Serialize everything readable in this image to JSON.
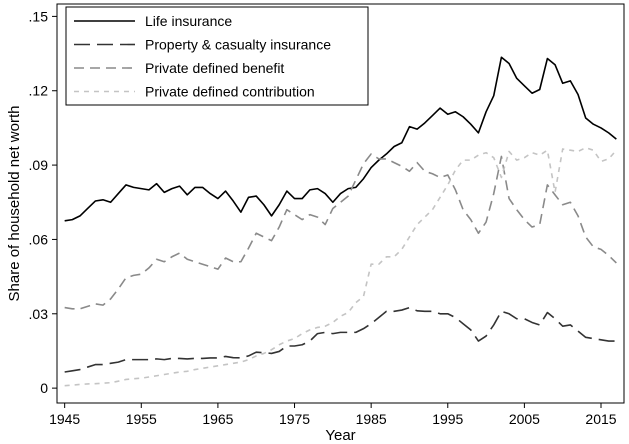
{
  "chart_data": {
    "type": "line",
    "xlabel": "Year",
    "ylabel": "Share of household net worth",
    "xlim": [
      1944,
      2018
    ],
    "ylim": [
      -0.006,
      0.155
    ],
    "x_ticks": [
      1945,
      1955,
      1965,
      1975,
      1985,
      1995,
      2005,
      2015
    ],
    "y_ticks": [
      {
        "value": 0,
        "label": "0"
      },
      {
        "value": 0.03,
        "label": ".03"
      },
      {
        "value": 0.06,
        "label": ".06"
      },
      {
        "value": 0.09,
        "label": ".09"
      },
      {
        "value": 0.12,
        "label": ".12"
      },
      {
        "value": 0.15,
        "label": ".15"
      }
    ],
    "grid": false,
    "legend_position": "top-left",
    "series": [
      {
        "name": "Life insurance",
        "color": "#000000",
        "dash": "solid",
        "x": [
          1945,
          1946,
          1947,
          1948,
          1949,
          1950,
          1951,
          1952,
          1953,
          1954,
          1955,
          1956,
          1957,
          1958,
          1959,
          1960,
          1961,
          1962,
          1963,
          1964,
          1965,
          1966,
          1967,
          1968,
          1969,
          1970,
          1971,
          1972,
          1973,
          1974,
          1975,
          1976,
          1977,
          1978,
          1979,
          1980,
          1981,
          1982,
          1983,
          1984,
          1985,
          1986,
          1987,
          1988,
          1989,
          1990,
          1991,
          1992,
          1993,
          1994,
          1995,
          1996,
          1997,
          1998,
          1999,
          2000,
          2001,
          2002,
          2003,
          2004,
          2005,
          2006,
          2007,
          2008,
          2009,
          2010,
          2011,
          2012,
          2013,
          2014,
          2015,
          2016,
          2017
        ],
        "values": [
          0.0675,
          0.068,
          0.0695,
          0.0725,
          0.0755,
          0.076,
          0.075,
          0.0785,
          0.082,
          0.081,
          0.0805,
          0.08,
          0.0825,
          0.079,
          0.0805,
          0.0815,
          0.078,
          0.081,
          0.081,
          0.0785,
          0.0765,
          0.0795,
          0.0755,
          0.071,
          0.077,
          0.0775,
          0.074,
          0.0695,
          0.074,
          0.0795,
          0.0765,
          0.0765,
          0.08,
          0.0805,
          0.0785,
          0.075,
          0.0785,
          0.0805,
          0.081,
          0.0845,
          0.089,
          0.092,
          0.0945,
          0.0975,
          0.099,
          0.1055,
          0.1045,
          0.107,
          0.11,
          0.113,
          0.1105,
          0.1115,
          0.1095,
          0.1065,
          0.103,
          0.1115,
          0.118,
          0.1335,
          0.131,
          0.125,
          0.122,
          0.119,
          0.1205,
          0.133,
          0.1305,
          0.123,
          0.124,
          0.1185,
          0.109,
          0.1065,
          0.105,
          0.103,
          0.1005
        ]
      },
      {
        "name": "Property & casualty insurance",
        "color": "#333333",
        "dash": "long",
        "x": [
          1945,
          1946,
          1947,
          1948,
          1949,
          1950,
          1951,
          1952,
          1953,
          1954,
          1955,
          1956,
          1957,
          1958,
          1959,
          1960,
          1961,
          1962,
          1963,
          1964,
          1965,
          1966,
          1967,
          1968,
          1969,
          1970,
          1971,
          1972,
          1973,
          1974,
          1975,
          1976,
          1977,
          1978,
          1979,
          1980,
          1981,
          1982,
          1983,
          1984,
          1985,
          1986,
          1987,
          1988,
          1989,
          1990,
          1991,
          1992,
          1993,
          1994,
          1995,
          1996,
          1997,
          1998,
          1999,
          2000,
          2001,
          2002,
          2003,
          2004,
          2005,
          2006,
          2007,
          2008,
          2009,
          2010,
          2011,
          2012,
          2013,
          2014,
          2015,
          2016,
          2017
        ],
        "values": [
          0.0065,
          0.007,
          0.0075,
          0.0085,
          0.0095,
          0.0095,
          0.01,
          0.0105,
          0.0115,
          0.0115,
          0.0115,
          0.0115,
          0.0118,
          0.0115,
          0.012,
          0.012,
          0.0118,
          0.012,
          0.012,
          0.0122,
          0.0122,
          0.0128,
          0.0123,
          0.0122,
          0.013,
          0.0145,
          0.0143,
          0.014,
          0.0148,
          0.017,
          0.017,
          0.0175,
          0.019,
          0.022,
          0.0225,
          0.022,
          0.0225,
          0.0225,
          0.0225,
          0.024,
          0.026,
          0.0285,
          0.031,
          0.031,
          0.0315,
          0.0325,
          0.0312,
          0.031,
          0.031,
          0.03,
          0.03,
          0.0285,
          0.026,
          0.0235,
          0.019,
          0.021,
          0.0255,
          0.031,
          0.03,
          0.028,
          0.028,
          0.0265,
          0.0255,
          0.0305,
          0.028,
          0.025,
          0.0255,
          0.023,
          0.0205,
          0.02,
          0.0195,
          0.019,
          0.019
        ]
      },
      {
        "name": "Private defined benefit",
        "color": "#8a8a8a",
        "dash": "medium",
        "x": [
          1945,
          1946,
          1947,
          1948,
          1949,
          1950,
          1951,
          1952,
          1953,
          1954,
          1955,
          1956,
          1957,
          1958,
          1959,
          1960,
          1961,
          1962,
          1963,
          1964,
          1965,
          1966,
          1967,
          1968,
          1969,
          1970,
          1971,
          1972,
          1973,
          1974,
          1975,
          1976,
          1977,
          1978,
          1979,
          1980,
          1981,
          1982,
          1983,
          1984,
          1985,
          1986,
          1987,
          1988,
          1989,
          1990,
          1991,
          1992,
          1993,
          1994,
          1995,
          1996,
          1997,
          1998,
          1999,
          2000,
          2001,
          2002,
          2003,
          2004,
          2005,
          2006,
          2007,
          2008,
          2009,
          2010,
          2011,
          2012,
          2013,
          2014,
          2015,
          2016,
          2017
        ],
        "values": [
          0.0325,
          0.032,
          0.032,
          0.033,
          0.034,
          0.0335,
          0.036,
          0.04,
          0.0445,
          0.0455,
          0.046,
          0.0485,
          0.052,
          0.051,
          0.053,
          0.0545,
          0.052,
          0.051,
          0.05,
          0.049,
          0.048,
          0.0525,
          0.051,
          0.051,
          0.0565,
          0.0625,
          0.061,
          0.0595,
          0.065,
          0.072,
          0.07,
          0.068,
          0.07,
          0.069,
          0.066,
          0.0725,
          0.075,
          0.0775,
          0.084,
          0.0905,
          0.0945,
          0.0925,
          0.0925,
          0.091,
          0.0895,
          0.0875,
          0.091,
          0.0875,
          0.0865,
          0.085,
          0.086,
          0.08,
          0.072,
          0.068,
          0.0625,
          0.067,
          0.0785,
          0.0935,
          0.0765,
          0.072,
          0.068,
          0.065,
          0.066,
          0.082,
          0.078,
          0.074,
          0.075,
          0.0695,
          0.061,
          0.057,
          0.056,
          0.0535,
          0.0505
        ]
      },
      {
        "name": "Private defined contribution",
        "color": "#c4c4c4",
        "dash": "short",
        "x": [
          1945,
          1946,
          1947,
          1948,
          1949,
          1950,
          1951,
          1952,
          1953,
          1954,
          1955,
          1956,
          1957,
          1958,
          1959,
          1960,
          1961,
          1962,
          1963,
          1964,
          1965,
          1966,
          1967,
          1968,
          1969,
          1970,
          1971,
          1972,
          1973,
          1974,
          1975,
          1976,
          1977,
          1978,
          1979,
          1980,
          1981,
          1982,
          1983,
          1984,
          1985,
          1986,
          1987,
          1988,
          1989,
          1990,
          1991,
          1992,
          1993,
          1994,
          1995,
          1996,
          1997,
          1998,
          1999,
          2000,
          2001,
          2002,
          2003,
          2004,
          2005,
          2006,
          2007,
          2008,
          2009,
          2010,
          2011,
          2012,
          2013,
          2014,
          2015,
          2016,
          2017
        ],
        "values": [
          0.001,
          0.0012,
          0.0015,
          0.0017,
          0.0018,
          0.002,
          0.0022,
          0.0028,
          0.0035,
          0.0038,
          0.004,
          0.0045,
          0.005,
          0.0055,
          0.006,
          0.0065,
          0.0068,
          0.0075,
          0.008,
          0.0085,
          0.009,
          0.0095,
          0.01,
          0.0105,
          0.0115,
          0.013,
          0.014,
          0.0155,
          0.0175,
          0.019,
          0.02,
          0.022,
          0.0235,
          0.0245,
          0.025,
          0.0265,
          0.029,
          0.0305,
          0.0345,
          0.037,
          0.05,
          0.05,
          0.053,
          0.053,
          0.056,
          0.061,
          0.066,
          0.069,
          0.072,
          0.077,
          0.082,
          0.088,
          0.092,
          0.092,
          0.094,
          0.095,
          0.093,
          0.085,
          0.0955,
          0.092,
          0.093,
          0.095,
          0.094,
          0.096,
          0.079,
          0.0965,
          0.096,
          0.0955,
          0.097,
          0.096,
          0.0915,
          0.0925,
          0.096
        ]
      }
    ]
  }
}
